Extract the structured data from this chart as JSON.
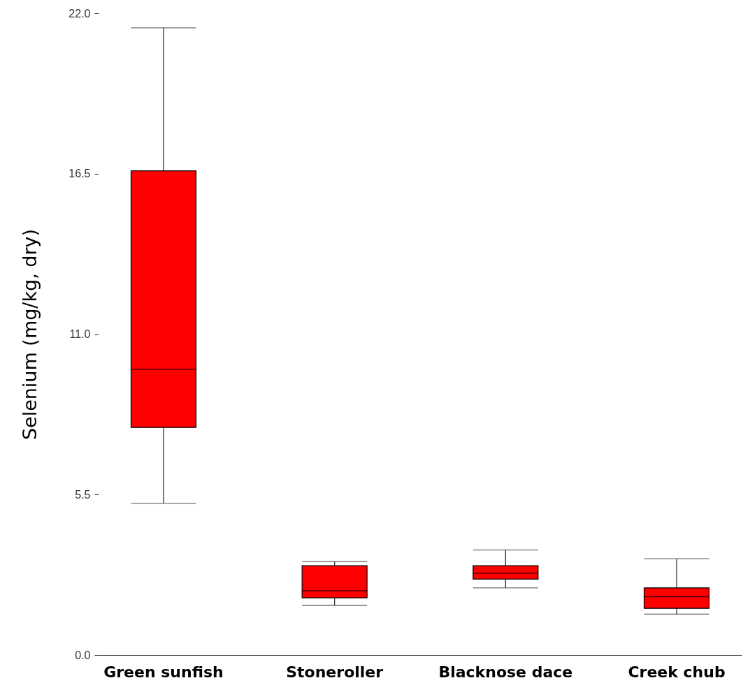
{
  "chart_data": {
    "type": "box",
    "ylabel": "Selenium (mg/kg, dry)",
    "categories": [
      "Green sunfish",
      "Stoneroller",
      "Blacknose dace",
      "Creek chub"
    ],
    "series": [
      {
        "color": "#ff0000",
        "boxes": [
          {
            "low": 5.2,
            "q1": 7.8,
            "median": 9.8,
            "q3": 16.6,
            "high": 21.5
          },
          {
            "low": 1.7,
            "q1": 1.96,
            "median": 2.2,
            "q3": 3.06,
            "high": 3.2
          },
          {
            "low": 2.3,
            "q1": 2.6,
            "median": 2.8,
            "q3": 3.06,
            "high": 3.6
          },
          {
            "low": 1.4,
            "q1": 1.6,
            "median": 2.0,
            "q3": 2.3,
            "high": 3.3
          }
        ]
      }
    ],
    "ylim": [
      0,
      22
    ],
    "yticks": [
      {
        "value": 0,
        "label": "0.0"
      },
      {
        "value": 5.5,
        "label": "5.5"
      },
      {
        "value": 11,
        "label": "11.0"
      },
      {
        "value": 16.5,
        "label": "16.5"
      },
      {
        "value": 22,
        "label": "22.0"
      }
    ],
    "grid": false
  }
}
